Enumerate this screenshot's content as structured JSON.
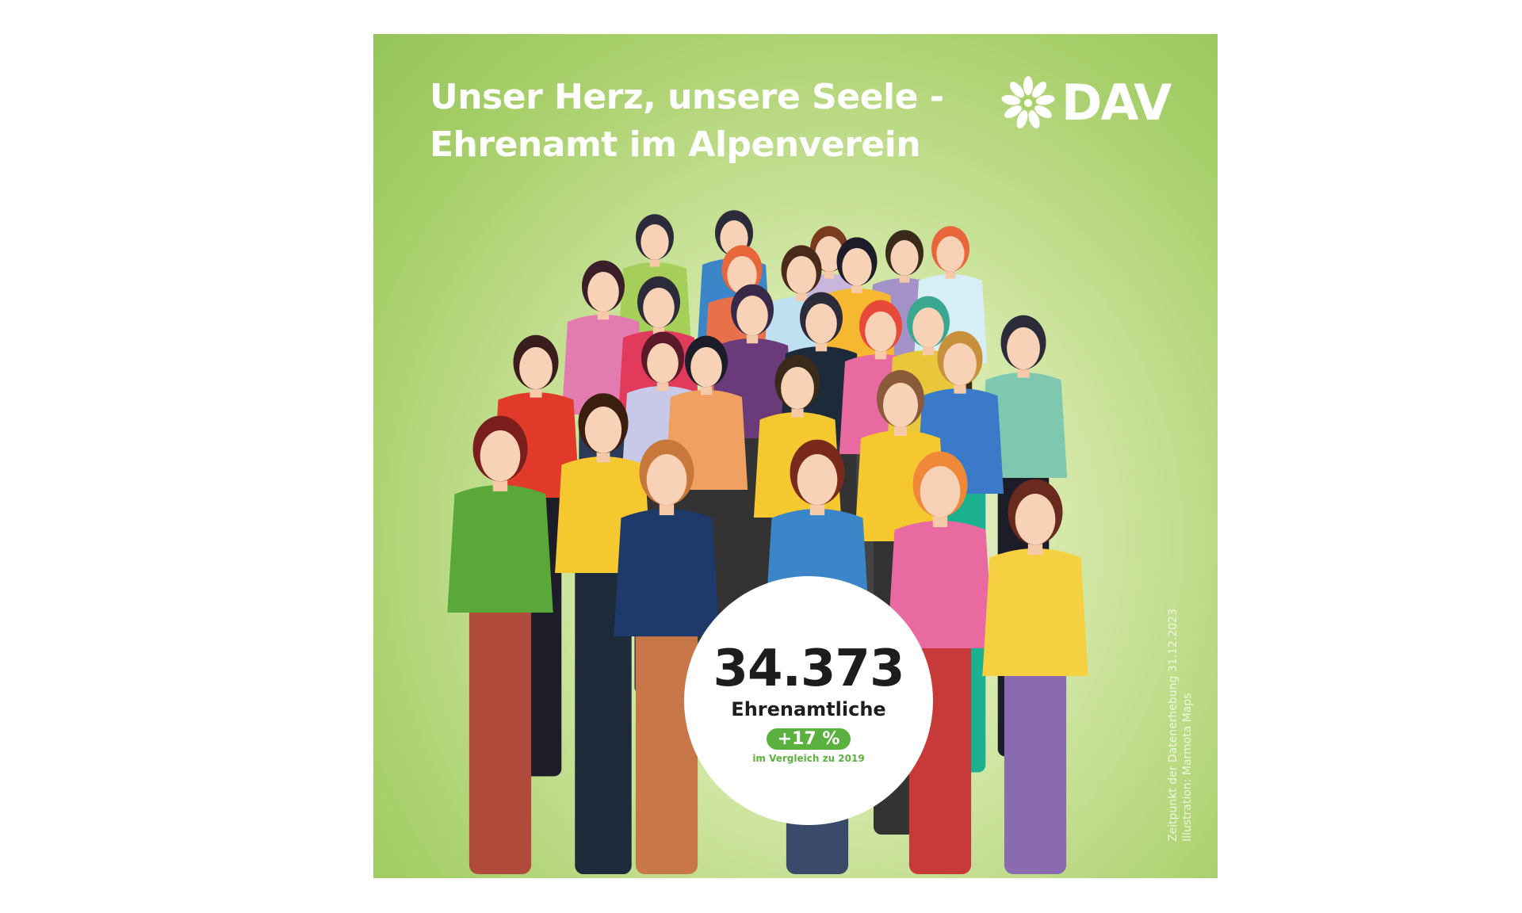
{
  "title": {
    "line1": "Unser Herz, unsere Seele -",
    "line2": "Ehrenamt im Alpenverein"
  },
  "logo": {
    "text": "DAV",
    "icon": "edelweiss-icon"
  },
  "stat": {
    "value": "34.373",
    "label": "Ehrenamtliche",
    "change": "+17 %",
    "comparison": "im Vergleich zu 2019"
  },
  "credits": {
    "line1": "Zeitpunkt der Datenerhebung 31.12.2023",
    "line2": "Illustration: Marmota Maps"
  },
  "colors": {
    "background": "#a9d06c",
    "accent": "#5ab13e",
    "text": "#1d1d1b"
  }
}
